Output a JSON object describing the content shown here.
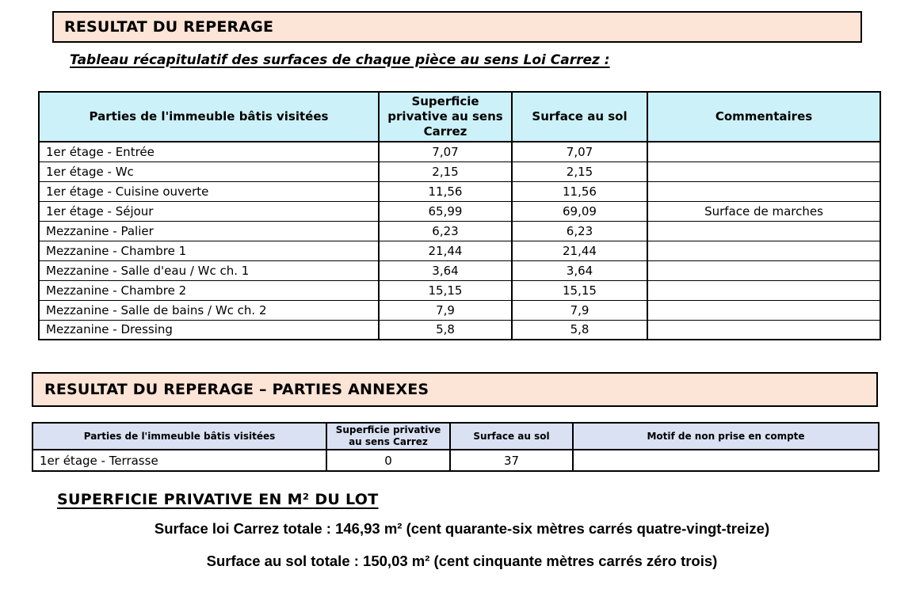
{
  "colors": {
    "section_header_bg": "#fce4d6",
    "table1_header_bg": "#ccf1f8",
    "table2_header_bg": "#d9e1f2",
    "border_color": "#000000",
    "text_color": "#000000"
  },
  "sections": {
    "reperage_title": "RESULTAT DU REPERAGE",
    "reperage_subtitle": "Tableau récapitulatif des surfaces de chaque pièce au sens Loi Carrez :",
    "annexes_title": "RESULTAT DU REPERAGE – PARTIES ANNEXES",
    "superficie_title": "SUPERFICIE PRIVATIVE EN M² DU LOT"
  },
  "table1": {
    "headers": [
      "Parties de l'immeuble bâtis visitées",
      "Superficie privative au sens Carrez",
      "Surface au sol",
      "Commentaires"
    ],
    "rows": [
      {
        "piece": "1er étage - Entrée",
        "carrez": "7,07",
        "sol": "7,07",
        "commentaire": ""
      },
      {
        "piece": "1er étage - Wc",
        "carrez": "2,15",
        "sol": "2,15",
        "commentaire": ""
      },
      {
        "piece": "1er étage - Cuisine ouverte",
        "carrez": "11,56",
        "sol": "11,56",
        "commentaire": ""
      },
      {
        "piece": "1er étage - Séjour",
        "carrez": "65,99",
        "sol": "69,09",
        "commentaire": "Surface de marches"
      },
      {
        "piece": "Mezzanine - Palier",
        "carrez": "6,23",
        "sol": "6,23",
        "commentaire": ""
      },
      {
        "piece": "Mezzanine - Chambre 1",
        "carrez": "21,44",
        "sol": "21,44",
        "commentaire": ""
      },
      {
        "piece": "Mezzanine - Salle d'eau / Wc ch. 1",
        "carrez": "3,64",
        "sol": "3,64",
        "commentaire": ""
      },
      {
        "piece": "Mezzanine - Chambre 2",
        "carrez": "15,15",
        "sol": "15,15",
        "commentaire": ""
      },
      {
        "piece": "Mezzanine - Salle de bains / Wc ch. 2",
        "carrez": "7,9",
        "sol": "7,9",
        "commentaire": ""
      },
      {
        "piece": "Mezzanine - Dressing",
        "carrez": "5,8",
        "sol": "5,8",
        "commentaire": ""
      }
    ]
  },
  "table2": {
    "headers": [
      "Parties de l'immeuble bâtis visitées",
      "Superficie privative au sens Carrez",
      "Surface au sol",
      "Motif de non prise en compte"
    ],
    "rows": [
      {
        "piece": "1er étage - Terrasse",
        "carrez": "0",
        "sol": "37",
        "motif": ""
      }
    ]
  },
  "totals": {
    "carrez_line": "Surface loi Carrez totale : 146,93 m² (cent quarante-six mètres carrés quatre-vingt-treize)",
    "sol_line": "Surface au sol totale : 150,03 m² (cent cinquante mètres carrés zéro trois)"
  }
}
